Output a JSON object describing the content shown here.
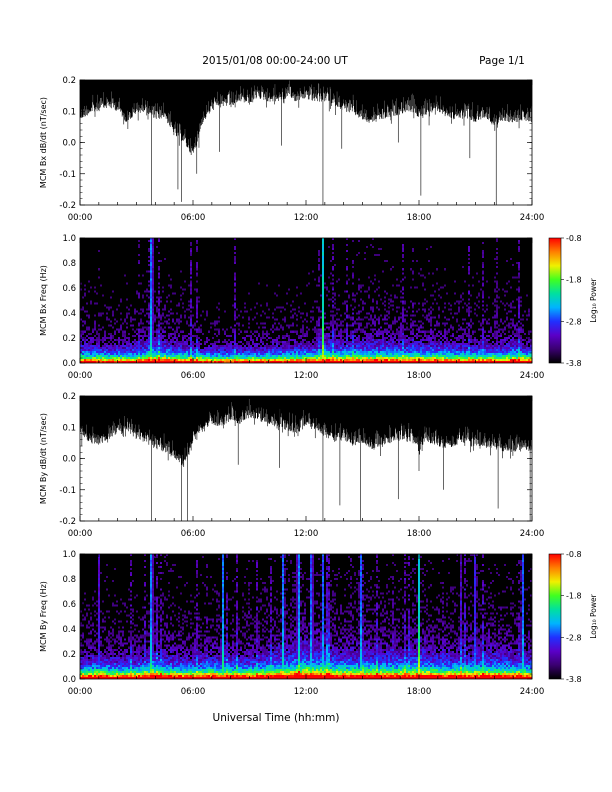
{
  "header": {
    "title": "2015/01/08  00:00-24:00 UT",
    "page": "Page 1/1"
  },
  "footer": {
    "xlabel": "Universal Time (hh:mm)"
  },
  "colors": {
    "colormap": [
      "#000000",
      "#3a0070",
      "#5a00c8",
      "#2030ff",
      "#00b4ff",
      "#00e0a0",
      "#40ff20",
      "#f0f000",
      "#ff8000",
      "#ff0000"
    ]
  },
  "chart_data": [
    {
      "type": "line",
      "ylabel": "MCM Bx dB/dt (nT/sec)",
      "xlim": [
        0,
        24
      ],
      "ylim": [
        -0.2,
        0.2
      ],
      "x_ticks": [
        "00:00",
        "06:00",
        "12:00",
        "18:00",
        "24:00"
      ],
      "y_ticks": [
        "0.2",
        "0.1",
        "0.0",
        "-0.1",
        "-0.2"
      ],
      "series": [
        {
          "x": [
            0,
            0.5,
            1,
            1.5,
            2,
            2.5,
            3,
            3.5,
            4,
            4.5,
            5,
            5.5,
            6,
            6.5,
            7,
            7.5,
            8,
            8.5,
            9,
            9.5,
            10,
            10.5,
            11,
            11.5,
            12,
            12.5,
            13,
            13.5,
            14,
            14.5,
            15,
            15.5,
            16,
            16.5,
            17,
            17.5,
            18,
            18.5,
            19,
            19.5,
            20,
            20.5,
            21,
            21.5,
            22,
            22.5,
            23,
            23.5,
            24
          ],
          "y_upper": [
            0.2,
            0.2,
            0.2,
            0.2,
            0.2,
            0.2,
            0.2,
            0.2,
            0.2,
            0.2,
            0.2,
            0.2,
            0.2,
            0.2,
            0.2,
            0.2,
            0.2,
            0.2,
            0.2,
            0.2,
            0.2,
            0.2,
            0.2,
            0.2,
            0.2,
            0.2,
            0.2,
            0.2,
            0.2,
            0.2,
            0.2,
            0.2,
            0.2,
            0.2,
            0.2,
            0.2,
            0.2,
            0.2,
            0.2,
            0.2,
            0.2,
            0.2,
            0.2,
            0.2,
            0.2,
            0.2,
            0.2,
            0.2,
            0.2
          ],
          "y_lower": [
            0.07,
            0.09,
            0.1,
            0.11,
            0.1,
            0.06,
            0.09,
            0.1,
            0.07,
            0.08,
            0.02,
            0.0,
            -0.05,
            0.06,
            0.1,
            0.12,
            0.11,
            0.13,
            0.12,
            0.14,
            0.13,
            0.13,
            0.14,
            0.13,
            0.14,
            0.13,
            0.13,
            0.12,
            0.1,
            0.09,
            0.07,
            0.06,
            0.07,
            0.08,
            0.09,
            0.1,
            0.08,
            0.09,
            0.1,
            0.08,
            0.07,
            0.08,
            0.06,
            0.08,
            0.05,
            0.07,
            0.06,
            0.07,
            0.06
          ],
          "spikes": [
            [
              3.8,
              -0.2
            ],
            [
              5.2,
              -0.15
            ],
            [
              5.4,
              -0.19
            ],
            [
              6.2,
              -0.1
            ],
            [
              12.9,
              -0.2
            ],
            [
              18.1,
              -0.17
            ],
            [
              22.1,
              -0.2
            ],
            [
              7.4,
              -0.03
            ],
            [
              10.7,
              -0.01
            ],
            [
              13.9,
              -0.02
            ],
            [
              16.9,
              0.0
            ],
            [
              20.7,
              -0.05
            ]
          ]
        }
      ]
    },
    {
      "type": "heatmap",
      "ylabel": "MCM Bx Freq (Hz)",
      "xlim": [
        0,
        24
      ],
      "ylim": [
        0,
        1
      ],
      "x_ticks": [
        "00:00",
        "06:00",
        "12:00",
        "18:00",
        "24:00"
      ],
      "y_ticks": [
        "1.0",
        "0.8",
        "0.6",
        "0.4",
        "0.2",
        "0.0"
      ],
      "colorbar": {
        "label": "Log₁₀ Power",
        "range": [
          -3.8,
          -0.8
        ],
        "ticks": [
          "-0.8",
          "-1.8",
          "-2.8",
          "-3.8"
        ]
      },
      "activity": [
        0.45,
        0.42,
        0.38,
        0.35,
        0.36,
        0.4,
        0.42,
        0.48,
        0.62,
        0.55,
        0.48,
        0.44,
        0.38,
        0.34,
        0.32,
        0.3,
        0.3,
        0.32,
        0.34,
        0.35,
        0.36,
        0.38,
        0.38,
        0.4,
        0.42,
        0.44,
        0.62,
        0.55,
        0.5,
        0.52,
        0.55,
        0.56,
        0.55,
        0.54,
        0.52,
        0.5,
        0.5,
        0.52,
        0.5,
        0.48,
        0.46,
        0.44,
        0.43,
        0.42,
        0.42,
        0.44,
        0.55,
        0.45,
        0.4
      ],
      "bursts": [
        [
          3.8,
          1.0
        ],
        [
          12.9,
          0.95
        ],
        [
          22.1,
          0.4
        ],
        [
          1.0,
          0.2
        ],
        [
          5.2,
          0.25
        ]
      ]
    },
    {
      "type": "line",
      "ylabel": "MCM By dB/dt (nT/sec)",
      "xlim": [
        0,
        24
      ],
      "ylim": [
        -0.2,
        0.2
      ],
      "x_ticks": [
        "00:00",
        "06:00",
        "12:00",
        "18:00",
        "24:00"
      ],
      "y_ticks": [
        "0.2",
        "0.1",
        "0.0",
        "-0.1",
        "-0.2"
      ],
      "series": [
        {
          "x": [
            0,
            0.5,
            1,
            1.5,
            2,
            2.5,
            3,
            3.5,
            4,
            4.5,
            5,
            5.5,
            6,
            6.5,
            7,
            7.5,
            8,
            8.5,
            9,
            9.5,
            10,
            10.5,
            11,
            11.5,
            12,
            12.5,
            13,
            13.5,
            14,
            14.5,
            15,
            15.5,
            16,
            16.5,
            17,
            17.5,
            18,
            18.5,
            19,
            19.5,
            20,
            20.5,
            21,
            21.5,
            22,
            22.5,
            23,
            23.5,
            24
          ],
          "y_upper": [
            0.2,
            0.2,
            0.2,
            0.2,
            0.2,
            0.2,
            0.2,
            0.2,
            0.2,
            0.2,
            0.2,
            0.2,
            0.2,
            0.2,
            0.2,
            0.2,
            0.2,
            0.2,
            0.2,
            0.2,
            0.2,
            0.2,
            0.2,
            0.2,
            0.2,
            0.2,
            0.2,
            0.2,
            0.2,
            0.2,
            0.2,
            0.2,
            0.2,
            0.2,
            0.2,
            0.2,
            0.2,
            0.2,
            0.2,
            0.2,
            0.2,
            0.2,
            0.2,
            0.2,
            0.2,
            0.2,
            0.2,
            0.2,
            0.2
          ],
          "y_lower": [
            0.07,
            0.05,
            0.04,
            0.06,
            0.08,
            0.09,
            0.06,
            0.05,
            0.03,
            0.02,
            0.0,
            -0.03,
            0.05,
            0.09,
            0.11,
            0.1,
            0.12,
            0.11,
            0.13,
            0.12,
            0.11,
            0.1,
            0.09,
            0.08,
            0.1,
            0.09,
            0.07,
            0.05,
            0.06,
            0.04,
            0.05,
            0.03,
            0.04,
            0.05,
            0.06,
            0.05,
            0.04,
            0.05,
            0.04,
            0.03,
            0.04,
            0.05,
            0.03,
            0.04,
            0.03,
            0.02,
            0.02,
            0.03,
            0.02
          ],
          "spikes": [
            [
              3.8,
              -0.2
            ],
            [
              5.4,
              -0.2
            ],
            [
              5.7,
              -0.2
            ],
            [
              12.9,
              -0.2
            ],
            [
              13.8,
              -0.15
            ],
            [
              14.9,
              -0.2
            ],
            [
              16.9,
              -0.13
            ],
            [
              19.3,
              -0.1
            ],
            [
              22.2,
              -0.16
            ],
            [
              23.9,
              -0.2
            ],
            [
              8.4,
              -0.02
            ],
            [
              10.6,
              -0.03
            ],
            [
              18.0,
              -0.04
            ]
          ]
        }
      ]
    },
    {
      "type": "heatmap",
      "ylabel": "MCM By Freq (Hz)",
      "xlim": [
        0,
        24
      ],
      "ylim": [
        0,
        1
      ],
      "x_ticks": [
        "00:00",
        "06:00",
        "12:00",
        "18:00",
        "24:00"
      ],
      "y_ticks": [
        "1.0",
        "0.8",
        "0.6",
        "0.4",
        "0.2",
        "0.0"
      ],
      "colorbar": {
        "label": "Log₁₀ Power",
        "range": [
          -3.8,
          -0.8
        ],
        "ticks": [
          "-0.8",
          "-1.8",
          "-2.8",
          "-3.8"
        ]
      },
      "activity": [
        0.5,
        0.55,
        0.6,
        0.55,
        0.5,
        0.52,
        0.55,
        0.6,
        0.68,
        0.62,
        0.58,
        0.55,
        0.55,
        0.58,
        0.62,
        0.6,
        0.58,
        0.56,
        0.58,
        0.62,
        0.68,
        0.74,
        0.78,
        0.86,
        0.92,
        0.88,
        0.8,
        0.74,
        0.72,
        0.7,
        0.72,
        0.74,
        0.72,
        0.7,
        0.7,
        0.72,
        0.8,
        0.72,
        0.68,
        0.66,
        0.65,
        0.64,
        0.66,
        0.7,
        0.72,
        0.68,
        0.64,
        0.62,
        0.6
      ],
      "bursts": [
        [
          1.0,
          0.5
        ],
        [
          3.8,
          1.0
        ],
        [
          7.6,
          0.8
        ],
        [
          10.8,
          0.9
        ],
        [
          11.6,
          1.0
        ],
        [
          12.3,
          0.95
        ],
        [
          12.9,
          0.7
        ],
        [
          14.9,
          0.85
        ],
        [
          18.0,
          0.95
        ],
        [
          21.0,
          0.7
        ],
        [
          23.5,
          0.85
        ]
      ]
    }
  ]
}
